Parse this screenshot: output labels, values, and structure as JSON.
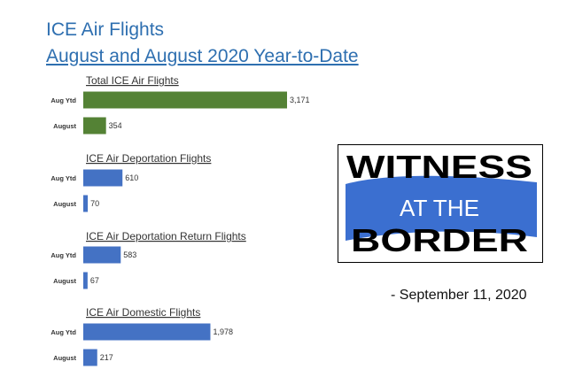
{
  "title": "ICE Air Flights",
  "subtitle": "August and August 2020 Year-to-Date",
  "colors": {
    "total": "#548235",
    "category": "#4472c4",
    "title": "#2e6fb0"
  },
  "chart_data": [
    {
      "type": "bar",
      "orientation": "horizontal",
      "title": "Total ICE Air Flights",
      "categories": [
        "Aug Ytd",
        "August"
      ],
      "values": [
        3171,
        354
      ],
      "data_labels": [
        "3,171",
        "354"
      ],
      "color": "#548235"
    },
    {
      "type": "bar",
      "orientation": "horizontal",
      "title": "ICE Air Deportation Flights",
      "categories": [
        "Aug Ytd",
        "August"
      ],
      "values": [
        610,
        70
      ],
      "data_labels": [
        "610",
        "70"
      ],
      "color": "#4472c4"
    },
    {
      "type": "bar",
      "orientation": "horizontal",
      "title": "ICE Air Deportation Return Flights",
      "categories": [
        "Aug Ytd",
        "August"
      ],
      "values": [
        583,
        67
      ],
      "data_labels": [
        "583",
        "67"
      ],
      "color": "#4472c4"
    },
    {
      "type": "bar",
      "orientation": "horizontal",
      "title": "ICE Air Domestic Flights",
      "categories": [
        "Aug Ytd",
        "August"
      ],
      "values": [
        1978,
        217
      ],
      "data_labels": [
        "1,978",
        "217"
      ],
      "color": "#4472c4"
    }
  ],
  "logo": {
    "line1": "WITNESS",
    "line2": "AT THE",
    "line3": "BORDER"
  },
  "date": "-  September 11, 2020"
}
